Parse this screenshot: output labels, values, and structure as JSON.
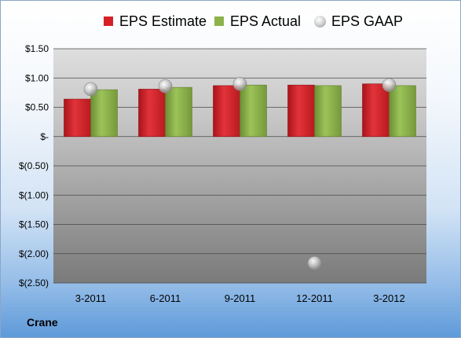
{
  "company_label": "Crane",
  "chart_data": {
    "type": "bar",
    "categories": [
      "3-2011",
      "6-2011",
      "9-2011",
      "12-2011",
      "3-2012"
    ],
    "series": [
      {
        "name": "EPS Estimate",
        "kind": "bar",
        "color": "#d62027",
        "values": [
          0.64,
          0.81,
          0.87,
          0.88,
          0.9
        ]
      },
      {
        "name": "EPS Actual",
        "kind": "bar",
        "color": "#8cb34a",
        "values": [
          0.8,
          0.84,
          0.88,
          0.87,
          0.87
        ]
      },
      {
        "name": "EPS GAAP",
        "kind": "marker",
        "color": "#c0c0c0",
        "values": [
          0.81,
          0.86,
          0.9,
          -2.16,
          0.88
        ]
      }
    ],
    "yticks": [
      1.5,
      1.0,
      0.5,
      0,
      -0.5,
      -1.0,
      -1.5,
      -2.0,
      -2.5
    ],
    "ytick_labels": [
      "$1.50",
      "$1.00",
      "$0.50",
      "$-",
      "$(0.50)",
      "$(1.00)",
      "$(1.50)",
      "$(2.00)",
      "$(2.50)"
    ],
    "ylim": [
      -2.5,
      1.5
    ],
    "grid": true,
    "legend_position": "top"
  }
}
